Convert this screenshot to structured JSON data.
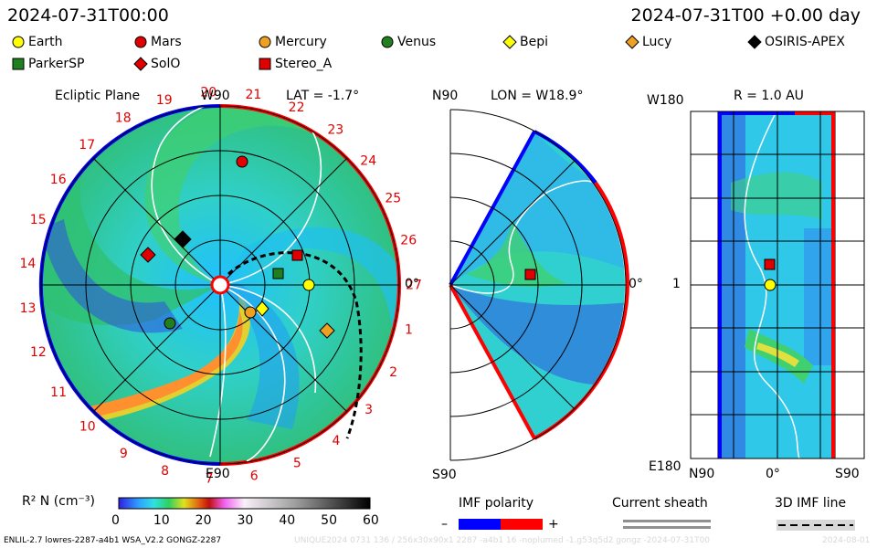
{
  "header": {
    "left_time": "2024-07-31T00:00",
    "right_time": "2024-07-31T00 +0.00 day"
  },
  "legend": [
    {
      "name": "Earth",
      "shape": "circle",
      "color": "#ffff00"
    },
    {
      "name": "Mars",
      "shape": "circle",
      "color": "#e00000"
    },
    {
      "name": "Mercury",
      "shape": "circle",
      "color": "#f0a020"
    },
    {
      "name": "Venus",
      "shape": "circle",
      "color": "#208020"
    },
    {
      "name": "Bepi",
      "shape": "diamond",
      "color": "#ffff00"
    },
    {
      "name": "Lucy",
      "shape": "diamond",
      "color": "#f0a020"
    },
    {
      "name": "OSIRIS-APEX",
      "shape": "diamond",
      "color": "#000000"
    },
    {
      "name": "ParkerSP",
      "shape": "square",
      "color": "#208020"
    },
    {
      "name": "SolO",
      "shape": "diamond",
      "color": "#e00000"
    },
    {
      "name": "Stereo_A",
      "shape": "square",
      "color": "#e00000"
    }
  ],
  "panels": {
    "ecliptic": {
      "title": "Ecliptic Plane",
      "lat_label": "LAT = -1.7°",
      "top_label": "W90",
      "bottom_label": "E90",
      "right_label": "0°"
    },
    "meridional": {
      "lon_label": "LON = W18.9°",
      "top_label": "N90",
      "bottom_label": "S90",
      "right_label": "0°"
    },
    "radial": {
      "r_label": "R = 1.0 AU",
      "top_label": "W180",
      "bottom_label": "E180",
      "left_mid_label": "1",
      "x_left": "N90",
      "x_mid": "0°",
      "x_right": "S90"
    }
  },
  "colorbar": {
    "label": "R² N (cm⁻³)",
    "ticks": [
      "0",
      "10",
      "20",
      "30",
      "40",
      "50",
      "60"
    ]
  },
  "imf_polarity": {
    "title": "IMF polarity",
    "minus": "–",
    "plus": "+",
    "neg_color": "#0000ff",
    "pos_color": "#ff0000"
  },
  "current_sheath": {
    "title": "Current sheath"
  },
  "imf_line": {
    "title": "3D IMF line"
  },
  "footer": {
    "left": "ENLIL-2.7 lowres-2287-a4b1 WSA_V2.2 GONGZ-2287",
    "right": "UNIQUE2024 0731 136 / 256x30x90x1 2287 -a4b1 16 -noplumed -1.g53q5d2 gongz -2024-07-31T00",
    "date": "2024-08-01"
  },
  "chart_data": {
    "type": "heatmap",
    "carrington_labels": [
      "20",
      "21",
      "22",
      "23",
      "24",
      "25",
      "26",
      "27",
      "1",
      "2",
      "3",
      "4",
      "5",
      "6",
      "7",
      "8",
      "9",
      "10",
      "11",
      "12",
      "13",
      "14",
      "15",
      "16",
      "17",
      "18",
      "19"
    ],
    "density_scale": {
      "min": 0,
      "max": 60,
      "units": "cm^-3 (R^2 N)"
    },
    "radial_rings_au": [
      0.5,
      1.0,
      1.5,
      2.0
    ]
  }
}
